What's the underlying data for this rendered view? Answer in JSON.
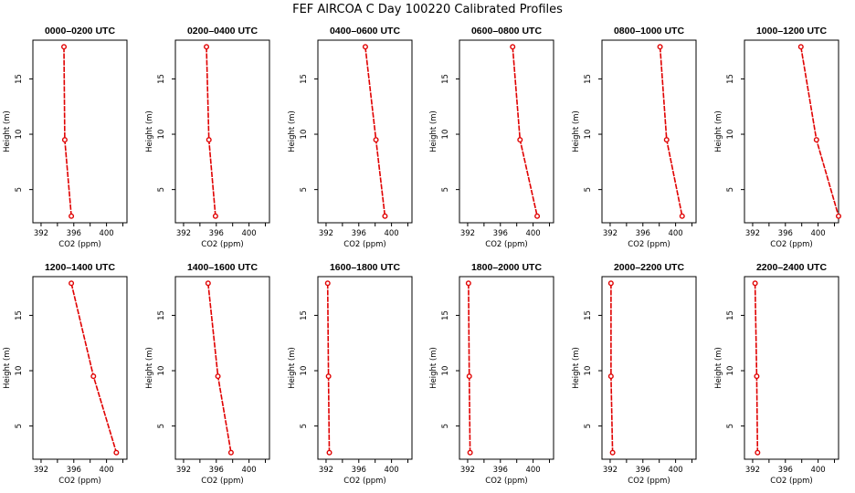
{
  "figure_title": "FEF AIRCOA C  Day 100220  Calibrated Profiles",
  "chart_data": {
    "type": "line",
    "shared": {
      "xlabel": "CO2 (ppm)",
      "ylabel": "Height (m)",
      "xlim": [
        391,
        402.5
      ],
      "ylim": [
        2.0,
        18.5
      ],
      "xticks": [
        392,
        396,
        400
      ],
      "yticks": [
        5,
        10,
        15
      ],
      "grid": false
    },
    "panels": [
      {
        "title": "0000–0200 UTC",
        "x": [
          394.8,
          394.9,
          395.7
        ],
        "y": [
          17.9,
          9.5,
          2.6
        ]
      },
      {
        "title": "0200–0400 UTC",
        "x": [
          394.8,
          395.1,
          395.9
        ],
        "y": [
          17.9,
          9.5,
          2.6
        ]
      },
      {
        "title": "0400–0600 UTC",
        "x": [
          396.8,
          398.1,
          399.2
        ],
        "y": [
          17.9,
          9.5,
          2.6
        ]
      },
      {
        "title": "0600–0800 UTC",
        "x": [
          397.5,
          398.4,
          400.5
        ],
        "y": [
          17.9,
          9.5,
          2.6
        ]
      },
      {
        "title": "0800–1000 UTC",
        "x": [
          398.1,
          398.9,
          400.8
        ],
        "y": [
          17.9,
          9.5,
          2.6
        ]
      },
      {
        "title": "1000–1200 UTC",
        "x": [
          397.9,
          399.8,
          402.5
        ],
        "y": [
          17.9,
          9.5,
          2.6
        ]
      },
      {
        "title": "1200–1400 UTC",
        "x": [
          395.7,
          398.4,
          401.2
        ],
        "y": [
          17.9,
          9.5,
          2.6
        ]
      },
      {
        "title": "1400–1600 UTC",
        "x": [
          395.0,
          396.2,
          397.8
        ],
        "y": [
          17.9,
          9.5,
          2.6
        ]
      },
      {
        "title": "1600–1800 UTC",
        "x": [
          392.2,
          392.3,
          392.4
        ],
        "y": [
          17.9,
          9.5,
          2.6
        ]
      },
      {
        "title": "1800–2000 UTC",
        "x": [
          392.1,
          392.2,
          392.3
        ],
        "y": [
          17.9,
          9.5,
          2.6
        ]
      },
      {
        "title": "2000–2200 UTC",
        "x": [
          392.1,
          392.1,
          392.3
        ],
        "y": [
          17.9,
          9.5,
          2.6
        ]
      },
      {
        "title": "2200–2400 UTC",
        "x": [
          392.3,
          392.5,
          392.6
        ],
        "y": [
          17.9,
          9.5,
          2.6
        ]
      }
    ]
  }
}
